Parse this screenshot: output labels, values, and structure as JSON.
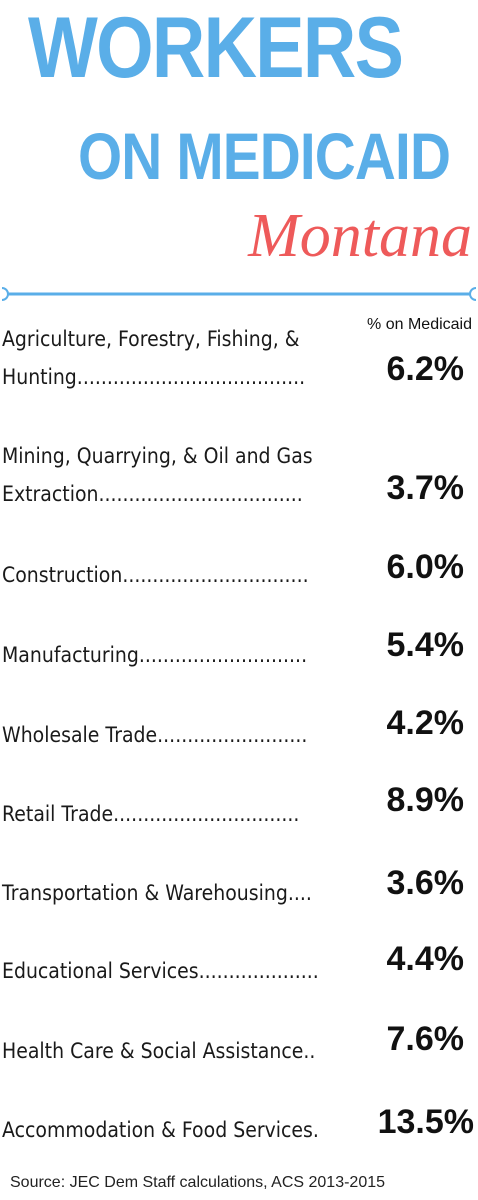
{
  "title": {
    "line1": "WORKERS",
    "line2": "ON MEDICAID",
    "state": "Montana"
  },
  "colors": {
    "title_blue": "#5aaee8",
    "state_red": "#ee5a5a",
    "divider_blue": "#5aaee8"
  },
  "column_header": "% on Medicaid",
  "rows": [
    {
      "label_line1": "Agriculture, Forestry, Fishing, &",
      "label_line2": "Hunting......................................",
      "value": "6.2%"
    },
    {
      "label_line1": "Mining, Quarrying, & Oil and Gas",
      "label_line2": "Extraction..................................",
      "value": "3.7%"
    },
    {
      "label": "Construction...............................",
      "value": "6.0%"
    },
    {
      "label": "Manufacturing............................",
      "value": "5.4%"
    },
    {
      "label": "Wholesale Trade.........................",
      "value": "4.2%"
    },
    {
      "label": "Retail Trade...............................",
      "value": "8.9%"
    },
    {
      "label": "Transportation & Warehousing....",
      "value": "3.6%"
    },
    {
      "label": "Educational Services....................",
      "value": "4.4%"
    },
    {
      "label": "Health Care & Social Assistance..",
      "value": "7.6%"
    },
    {
      "label": "Accommodation & Food Services.",
      "value": "13.5%"
    }
  ],
  "source": "Source: JEC Dem Staff calculations, ACS 2013-2015"
}
